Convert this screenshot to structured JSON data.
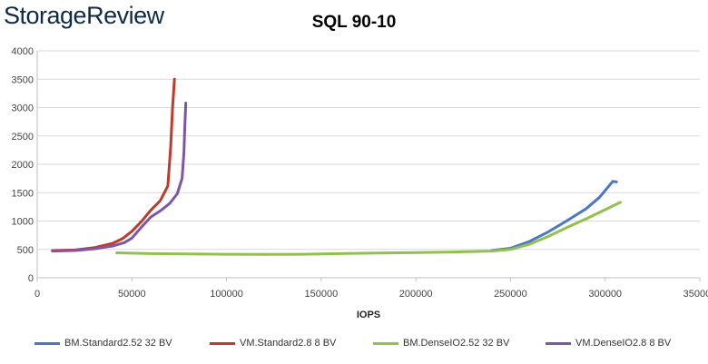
{
  "header": {
    "logo_text": "StorageReview"
  },
  "colors": {
    "grid": "#d9d9d9",
    "axis": "#bfbfbf",
    "series": [
      "#4a78c4",
      "#c0392b",
      "#92c04d",
      "#7d57a6"
    ]
  },
  "chart_data": {
    "type": "line",
    "title": "SQL 90-10",
    "xlabel": "IOPS",
    "ylabel": "",
    "xlim": [
      0,
      350000
    ],
    "ylim": [
      0,
      4000
    ],
    "x_ticks": [
      "0",
      "50000",
      "100000",
      "150000",
      "200000",
      "250000",
      "300000",
      "350000"
    ],
    "y_ticks": [
      "0",
      "500",
      "1000",
      "1500",
      "2000",
      "2500",
      "3000",
      "3500",
      "4000"
    ],
    "grid": true,
    "legend_position": "bottom",
    "series": [
      {
        "name": "BM.Standard2.52 32 BV",
        "points": [
          [
            240000,
            480
          ],
          [
            250000,
            520
          ],
          [
            260000,
            640
          ],
          [
            270000,
            810
          ],
          [
            280000,
            1010
          ],
          [
            290000,
            1220
          ],
          [
            297000,
            1420
          ],
          [
            302000,
            1620
          ],
          [
            304000,
            1700
          ],
          [
            306000,
            1690
          ]
        ]
      },
      {
        "name": "VM.Standard2.8 8 BV",
        "points": [
          [
            8000,
            480
          ],
          [
            20000,
            490
          ],
          [
            30000,
            530
          ],
          [
            40000,
            610
          ],
          [
            45000,
            690
          ],
          [
            50000,
            820
          ],
          [
            55000,
            990
          ],
          [
            60000,
            1190
          ],
          [
            65000,
            1360
          ],
          [
            69000,
            1620
          ],
          [
            70500,
            2300
          ],
          [
            71500,
            3000
          ],
          [
            72500,
            3500
          ]
        ]
      },
      {
        "name": "BM.DenseIO2.52 32 BV",
        "points": [
          [
            42000,
            440
          ],
          [
            60000,
            425
          ],
          [
            80000,
            420
          ],
          [
            100000,
            415
          ],
          [
            120000,
            412
          ],
          [
            140000,
            415
          ],
          [
            160000,
            425
          ],
          [
            180000,
            435
          ],
          [
            200000,
            445
          ],
          [
            220000,
            455
          ],
          [
            240000,
            470
          ],
          [
            250000,
            500
          ],
          [
            260000,
            590
          ],
          [
            270000,
            730
          ],
          [
            280000,
            890
          ],
          [
            290000,
            1040
          ],
          [
            300000,
            1200
          ],
          [
            308000,
            1330
          ]
        ]
      },
      {
        "name": "VM.DenseIO2.8 8 BV",
        "points": [
          [
            8000,
            470
          ],
          [
            20000,
            480
          ],
          [
            30000,
            510
          ],
          [
            40000,
            560
          ],
          [
            46000,
            620
          ],
          [
            50000,
            700
          ],
          [
            55000,
            890
          ],
          [
            60000,
            1070
          ],
          [
            65000,
            1180
          ],
          [
            70000,
            1310
          ],
          [
            74000,
            1480
          ],
          [
            76500,
            1750
          ],
          [
            77500,
            2200
          ],
          [
            78000,
            2700
          ],
          [
            78500,
            3080
          ]
        ]
      }
    ]
  }
}
